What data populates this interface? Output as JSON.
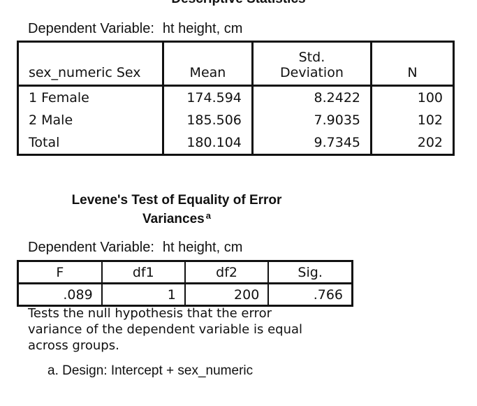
{
  "descriptive": {
    "title": "Descriptive Statistics",
    "dependent_label": "Dependent Variable:",
    "dependent_value": "ht height, cm",
    "headers": {
      "group": "sex_numeric Sex",
      "mean": "Mean",
      "std_line1": "Std.",
      "std_line2": "Deviation",
      "n": "N"
    },
    "rows": [
      {
        "group": "1 Female",
        "mean": "174.594",
        "std": "8.2422",
        "n": "100"
      },
      {
        "group": "2 Male",
        "mean": "185.506",
        "std": "7.9035",
        "n": "102"
      },
      {
        "group": "Total",
        "mean": "180.104",
        "std": "9.7345",
        "n": "202"
      }
    ]
  },
  "levene": {
    "title_line1": "Levene's Test of Equality of Error",
    "title_line2": "Variances",
    "title_sup": "a",
    "dependent_label": "Dependent Variable:",
    "dependent_value": "ht height, cm",
    "headers": [
      "F",
      "df1",
      "df2",
      "Sig."
    ],
    "values": [
      ".089",
      "1",
      "200",
      ".766"
    ],
    "note": "Tests the null hypothesis that the error variance of the dependent variable is equal across groups.",
    "footnote_a": "a. Design: Intercept + sex_numeric"
  }
}
